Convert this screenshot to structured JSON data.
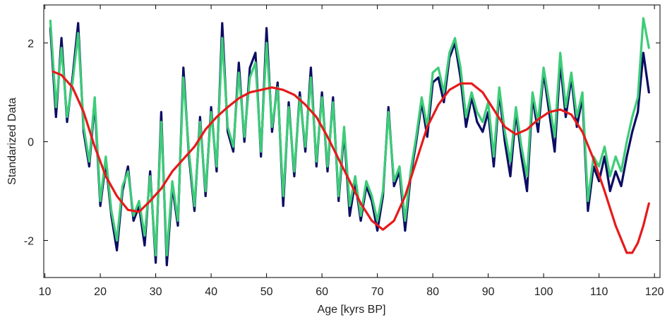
{
  "chart_data": {
    "type": "line",
    "xlabel": "Age [kyrs BP]",
    "ylabel": "Standarized Data",
    "xlim": [
      9.8,
      121
    ],
    "ylim": [
      -2.75,
      2.77
    ],
    "xticks": [
      10,
      20,
      30,
      40,
      50,
      60,
      70,
      80,
      90,
      100,
      110,
      120
    ],
    "yticks": [
      -2,
      0,
      2
    ],
    "series": [
      {
        "color": "#0b0d63",
        "x": [
          11,
          12,
          13,
          14,
          15,
          16,
          17,
          18,
          19,
          20,
          21,
          22,
          23,
          24,
          25,
          26,
          27,
          28,
          29,
          30,
          31,
          32,
          33,
          34,
          35,
          36,
          37,
          38,
          39,
          40,
          41,
          42,
          43,
          44,
          45,
          46,
          47,
          48,
          49,
          50,
          51,
          52,
          53,
          54,
          55,
          56,
          57,
          58,
          59,
          60,
          61,
          62,
          63,
          64,
          65,
          66,
          67,
          68,
          69,
          70,
          71,
          72,
          73,
          74,
          75,
          76,
          77,
          78,
          79,
          80,
          81,
          82,
          83,
          84,
          85,
          86,
          87,
          88,
          89,
          90,
          91,
          92,
          93,
          94,
          95,
          96,
          97,
          98,
          99,
          100,
          101,
          102,
          103,
          104,
          105,
          106,
          107,
          108,
          109,
          110,
          111,
          112,
          113,
          114,
          115,
          116,
          117,
          118,
          119
        ],
        "values": [
          2.3,
          0.5,
          2.1,
          0.4,
          1.3,
          2.4,
          0.2,
          -0.5,
          0.8,
          -1.3,
          -0.4,
          -1.5,
          -2.2,
          -1.0,
          -0.5,
          -1.6,
          -1.3,
          -2.1,
          -0.6,
          -2.45,
          0.6,
          -2.5,
          -0.9,
          -1.7,
          1.5,
          -0.3,
          -1.4,
          0.5,
          -1.1,
          0.7,
          -0.6,
          2.4,
          0.2,
          -0.2,
          1.6,
          0.0,
          1.5,
          1.8,
          -0.3,
          2.3,
          0.2,
          1.2,
          -1.3,
          0.8,
          -0.7,
          1.0,
          -0.2,
          1.5,
          -0.5,
          1.0,
          -0.6,
          0.9,
          -1.2,
          0.2,
          -1.5,
          -0.8,
          -1.6,
          -0.9,
          -1.2,
          -1.8,
          -1.1,
          0.7,
          -0.9,
          -0.6,
          -1.8,
          -0.7,
          0.0,
          0.8,
          0.1,
          1.2,
          1.3,
          0.8,
          1.7,
          2.0,
          1.3,
          0.3,
          0.9,
          0.4,
          0.2,
          0.6,
          -0.5,
          1.0,
          0.0,
          -0.7,
          0.6,
          -0.3,
          -1.0,
          0.9,
          0.2,
          1.4,
          0.6,
          -0.2,
          1.6,
          0.5,
          1.3,
          0.3,
          0.9,
          -1.4,
          -0.5,
          -0.8,
          -0.3,
          -1.0,
          -0.6,
          -0.9,
          -0.3,
          0.2,
          0.6,
          1.8,
          1.0
        ]
      },
      {
        "color": "#3dcc78",
        "x": [
          11,
          12,
          13,
          14,
          15,
          16,
          17,
          18,
          19,
          20,
          21,
          22,
          23,
          24,
          25,
          26,
          27,
          28,
          29,
          30,
          31,
          32,
          33,
          34,
          35,
          36,
          37,
          38,
          39,
          40,
          41,
          42,
          43,
          44,
          45,
          46,
          47,
          48,
          49,
          50,
          51,
          52,
          53,
          54,
          55,
          56,
          57,
          58,
          59,
          60,
          61,
          62,
          63,
          64,
          65,
          66,
          67,
          68,
          69,
          70,
          71,
          72,
          73,
          74,
          75,
          76,
          77,
          78,
          79,
          80,
          81,
          82,
          83,
          84,
          85,
          86,
          87,
          88,
          89,
          90,
          91,
          92,
          93,
          94,
          95,
          96,
          97,
          98,
          99,
          100,
          101,
          102,
          103,
          104,
          105,
          106,
          107,
          108,
          109,
          110,
          111,
          112,
          113,
          114,
          115,
          116,
          117,
          118,
          119
        ],
        "values": [
          2.45,
          0.7,
          1.9,
          0.5,
          1.2,
          2.2,
          0.3,
          -0.4,
          0.9,
          -1.2,
          -0.3,
          -1.4,
          -2.0,
          -0.9,
          -0.6,
          -1.5,
          -1.2,
          -1.9,
          -0.7,
          -2.3,
          0.4,
          -2.3,
          -0.8,
          -1.6,
          1.3,
          -0.2,
          -1.3,
          0.4,
          -1.0,
          0.6,
          -0.5,
          2.1,
          0.3,
          -0.1,
          1.4,
          0.1,
          1.3,
          1.6,
          -0.2,
          2.0,
          0.3,
          1.1,
          -1.1,
          0.7,
          -0.6,
          0.9,
          -0.1,
          1.3,
          -0.4,
          0.9,
          -0.5,
          0.8,
          -1.1,
          0.3,
          -1.3,
          -0.7,
          -1.5,
          -0.8,
          -1.1,
          -1.6,
          -1.0,
          0.6,
          -0.8,
          -0.5,
          -1.6,
          -0.6,
          0.1,
          0.9,
          0.3,
          1.4,
          1.5,
          1.0,
          1.8,
          2.1,
          1.5,
          0.5,
          1.0,
          0.6,
          0.4,
          0.8,
          -0.3,
          1.1,
          0.2,
          -0.4,
          0.7,
          -0.1,
          -0.7,
          1.0,
          0.4,
          1.5,
          0.8,
          0.1,
          1.8,
          0.7,
          1.4,
          0.5,
          1.0,
          -1.2,
          -0.3,
          -0.5,
          -0.1,
          -0.7,
          -0.3,
          -0.6,
          0.0,
          0.5,
          0.9,
          2.5,
          1.9
        ]
      },
      {
        "color": "#e61a1a",
        "x": [
          11.5,
          13,
          15,
          17,
          19,
          21,
          23,
          25,
          27,
          29,
          31,
          33,
          35,
          37,
          39,
          41,
          43,
          45,
          47,
          49,
          51,
          53,
          55,
          57,
          59,
          61,
          63,
          65,
          67,
          69,
          71,
          73,
          75,
          77,
          79,
          81,
          83,
          85,
          87,
          89,
          91,
          93,
          95,
          97,
          99,
          101,
          103,
          105,
          107,
          109,
          111,
          113,
          115,
          116,
          117,
          118,
          119
        ],
        "values": [
          1.42,
          1.35,
          1.1,
          0.6,
          -0.1,
          -0.7,
          -1.1,
          -1.38,
          -1.42,
          -1.2,
          -0.95,
          -0.6,
          -0.35,
          -0.1,
          0.25,
          0.5,
          0.7,
          0.88,
          1.0,
          1.05,
          1.1,
          1.05,
          0.95,
          0.75,
          0.5,
          0.1,
          -0.35,
          -0.8,
          -1.25,
          -1.6,
          -1.78,
          -1.6,
          -1.1,
          -0.4,
          0.3,
          0.75,
          1.05,
          1.18,
          1.18,
          1.0,
          0.65,
          0.3,
          0.15,
          0.25,
          0.45,
          0.6,
          0.65,
          0.55,
          0.2,
          -0.35,
          -1.0,
          -1.7,
          -2.25,
          -2.25,
          -2.05,
          -1.7,
          -1.25
        ]
      }
    ]
  }
}
